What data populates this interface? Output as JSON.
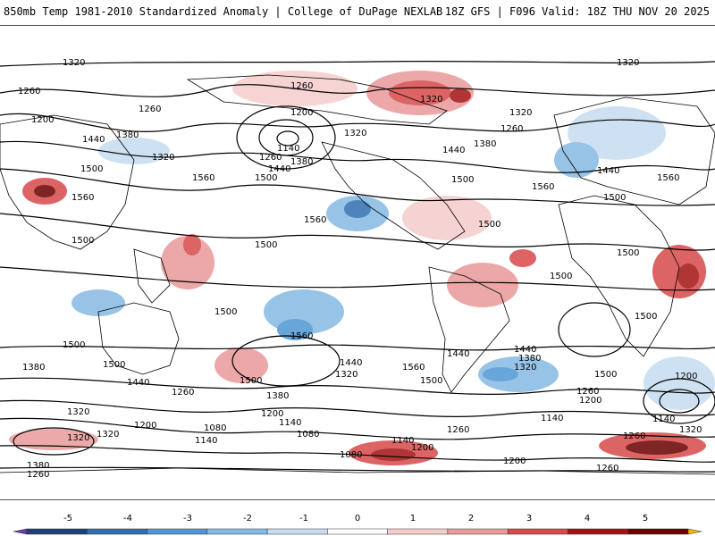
{
  "header": {
    "title": "850mb Temp 1981-2010 Standardized Anomaly | College of DuPage NEXLAB",
    "run_info": "18Z GFS | F096 Valid: 18Z THU NOV 20 2025"
  },
  "contour_labels": [
    "1320",
    "1260",
    "1200",
    "1140",
    "1380",
    "1440",
    "1500",
    "1560",
    "1080"
  ],
  "colorbar": {
    "ticks": [
      "-5",
      "-4",
      "-3",
      "-2",
      "-1",
      "0",
      "1",
      "2",
      "3",
      "4",
      "5"
    ],
    "colors": [
      "#6a3fa0",
      "#1f3f7a",
      "#2f6fb0",
      "#4e97d4",
      "#86b9e3",
      "#c6dcf0",
      "#ffffff",
      "#f5cccc",
      "#e99a9a",
      "#d84a4a",
      "#a31212",
      "#6b0000",
      "#f2b705"
    ]
  }
}
